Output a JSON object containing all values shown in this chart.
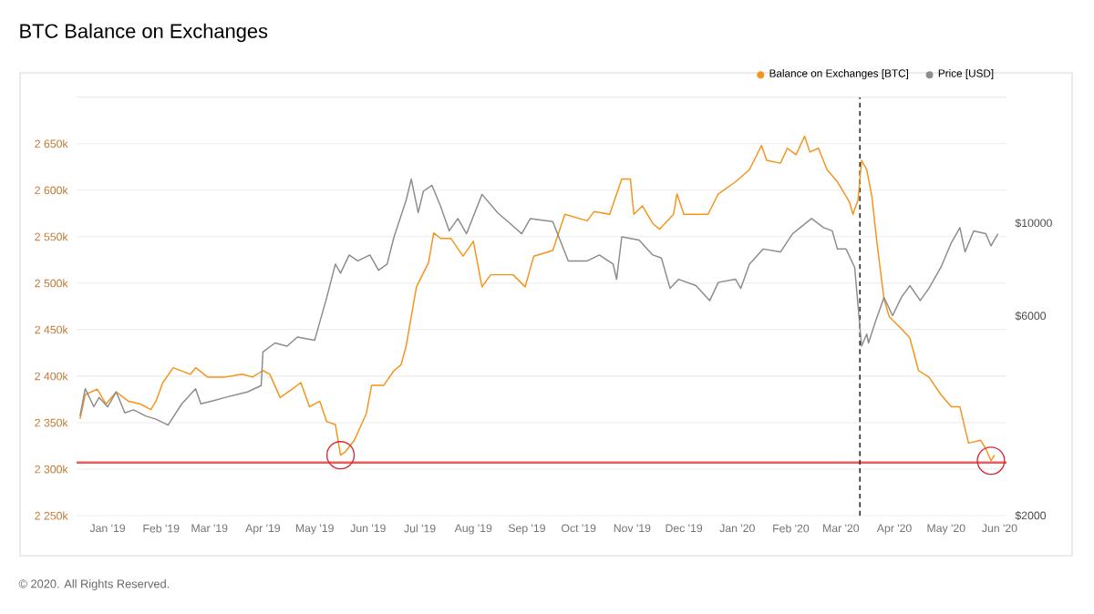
{
  "chart_data": {
    "type": "line",
    "title": "BTC Balance on Exchanges",
    "annotations": [
      "© 2020. All Rights Reserved."
    ],
    "xlim": [
      "2018-12-14",
      "2020-06-05"
    ],
    "xticks": [
      {
        "value": "2019-01-01",
        "label": "Jan '19"
      },
      {
        "value": "2019-02-01",
        "label": "Feb '19"
      },
      {
        "value": "2019-03-01",
        "label": "Mar '19"
      },
      {
        "value": "2019-04-01",
        "label": "Apr '19"
      },
      {
        "value": "2019-05-01",
        "label": "May '19"
      },
      {
        "value": "2019-06-01",
        "label": "Jun '19"
      },
      {
        "value": "2019-07-01",
        "label": "Jul '19"
      },
      {
        "value": "2019-08-01",
        "label": "Aug '19"
      },
      {
        "value": "2019-09-01",
        "label": "Sep '19"
      },
      {
        "value": "2019-10-01",
        "label": "Oct '19"
      },
      {
        "value": "2019-11-01",
        "label": "Nov '19"
      },
      {
        "value": "2019-12-01",
        "label": "Dec '19"
      },
      {
        "value": "2020-01-01",
        "label": "Jan '20"
      },
      {
        "value": "2020-02-01",
        "label": "Feb '20"
      },
      {
        "value": "2020-03-01",
        "label": "Mar '20"
      },
      {
        "value": "2020-04-01",
        "label": "Apr '20"
      },
      {
        "value": "2020-05-01",
        "label": "May '20"
      },
      {
        "value": "2020-06-01",
        "label": "Jun '20"
      }
    ],
    "ylim": [
      2250,
      2700
    ],
    "yticks": [
      {
        "value": 2250,
        "label": "2 250k"
      },
      {
        "value": 2300,
        "label": "2 300k"
      },
      {
        "value": 2350,
        "label": "2 350k"
      },
      {
        "value": 2400,
        "label": "2 400k"
      },
      {
        "value": 2450,
        "label": "2 450k"
      },
      {
        "value": 2500,
        "label": "2 500k"
      },
      {
        "value": 2550,
        "label": "2 550k"
      },
      {
        "value": 2600,
        "label": "2 600k"
      },
      {
        "value": 2650,
        "label": "2 650k"
      },
      {
        "value": 2700,
        "label": null
      }
    ],
    "y2lim": [
      2000,
      20000
    ],
    "y2ticks": [
      {
        "value": 2000,
        "label": "$2000"
      },
      {
        "value": 6000,
        "label": "$6000"
      },
      {
        "value": 10000,
        "label": "$10000"
      }
    ],
    "log": "y2",
    "grid": "y",
    "legend": "top right",
    "ref_lines": [
      {
        "axis": "y",
        "value": 2307,
        "color": "#ef5b5b"
      },
      {
        "axis": "x",
        "value": "2020-03-12",
        "color": "#222222",
        "line_style": "dashed"
      }
    ],
    "series": [
      {
        "name": "Balance on Exchanges [BTC]",
        "color": "#f7931a",
        "x": [
          "2018-12-16",
          "2018-12-19",
          "2018-12-26",
          "2018-12-31",
          "2019-01-06",
          "2019-01-13",
          "2019-01-20",
          "2019-01-26",
          "2019-01-29",
          "2019-02-02",
          "2019-02-08",
          "2019-02-18",
          "2019-02-21",
          "2019-02-28",
          "2019-03-10",
          "2019-03-20",
          "2019-03-26",
          "2019-04-01",
          "2019-04-05",
          "2019-04-11",
          "2019-04-18",
          "2019-04-23",
          "2019-04-28",
          "2019-05-04",
          "2019-05-08",
          "2019-05-13",
          "2019-05-16",
          "2019-05-19",
          "2019-05-24",
          "2019-05-31",
          "2019-06-03",
          "2019-06-10",
          "2019-06-16",
          "2019-06-20",
          "2019-06-23",
          "2019-06-29",
          "2019-07-06",
          "2019-07-09",
          "2019-07-13",
          "2019-07-19",
          "2019-07-26",
          "2019-08-01",
          "2019-08-06",
          "2019-08-11",
          "2019-08-24",
          "2019-08-31",
          "2019-09-05",
          "2019-09-16",
          "2019-09-23",
          "2019-10-06",
          "2019-10-10",
          "2019-10-19",
          "2019-10-26",
          "2019-10-31",
          "2019-11-02",
          "2019-11-07",
          "2019-11-13",
          "2019-11-17",
          "2019-11-25",
          "2019-11-27",
          "2019-12-01",
          "2019-12-15",
          "2019-12-21",
          "2019-12-31",
          "2020-01-08",
          "2020-01-15",
          "2020-01-18",
          "2020-01-26",
          "2020-01-30",
          "2020-02-04",
          "2020-02-09",
          "2020-02-12",
          "2020-02-17",
          "2020-02-22",
          "2020-02-28",
          "2020-03-06",
          "2020-03-08",
          "2020-03-11",
          "2020-03-13",
          "2020-03-16",
          "2020-03-19",
          "2020-03-22",
          "2020-03-26",
          "2020-03-29",
          "2020-04-05",
          "2020-04-10",
          "2020-04-15",
          "2020-04-21",
          "2020-04-28",
          "2020-05-04",
          "2020-05-09",
          "2020-05-14",
          "2020-05-21",
          "2020-05-24",
          "2020-05-27",
          "2020-05-29"
        ],
        "values": [
          2354,
          2380,
          2386,
          2370,
          2383,
          2373,
          2370,
          2364,
          2373,
          2393,
          2409,
          2402,
          2409,
          2399,
          2399,
          2402,
          2399,
          2406,
          2402,
          2377,
          2386,
          2393,
          2367,
          2373,
          2351,
          2348,
          2315,
          2319,
          2331,
          2360,
          2390,
          2390,
          2406,
          2412,
          2432,
          2496,
          2522,
          2554,
          2548,
          2548,
          2529,
          2545,
          2496,
          2509,
          2509,
          2496,
          2529,
          2535,
          2574,
          2567,
          2577,
          2574,
          2612,
          2612,
          2574,
          2583,
          2564,
          2558,
          2574,
          2596,
          2574,
          2574,
          2596,
          2609,
          2622,
          2648,
          2632,
          2629,
          2645,
          2638,
          2658,
          2641,
          2645,
          2622,
          2609,
          2587,
          2574,
          2590,
          2632,
          2622,
          2593,
          2542,
          2483,
          2464,
          2451,
          2441,
          2406,
          2399,
          2380,
          2367,
          2367,
          2328,
          2331,
          2322,
          2309,
          2315
        ]
      },
      {
        "name": "Price [USD]",
        "color": "#8c8c8c",
        "axis": "y2",
        "x": [
          "2018-12-16",
          "2018-12-19",
          "2018-12-24",
          "2018-12-27",
          "2019-01-01",
          "2019-01-06",
          "2019-01-11",
          "2019-01-16",
          "2019-01-23",
          "2019-01-29",
          "2019-02-05",
          "2019-02-13",
          "2019-02-21",
          "2019-02-24",
          "2019-03-03",
          "2019-03-10",
          "2019-03-23",
          "2019-03-31",
          "2019-04-01",
          "2019-04-08",
          "2019-04-15",
          "2019-04-21",
          "2019-05-01",
          "2019-05-08",
          "2019-05-13",
          "2019-05-16",
          "2019-05-21",
          "2019-05-26",
          "2019-06-02",
          "2019-06-07",
          "2019-06-12",
          "2019-06-16",
          "2019-06-23",
          "2019-06-26",
          "2019-06-30",
          "2019-07-03",
          "2019-07-08",
          "2019-07-13",
          "2019-07-18",
          "2019-07-23",
          "2019-07-28",
          "2019-08-06",
          "2019-08-15",
          "2019-08-21",
          "2019-08-29",
          "2019-09-03",
          "2019-09-16",
          "2019-09-25",
          "2019-10-06",
          "2019-10-13",
          "2019-10-21",
          "2019-10-23",
          "2019-10-26",
          "2019-11-05",
          "2019-11-13",
          "2019-11-18",
          "2019-11-23",
          "2019-11-28",
          "2019-12-08",
          "2019-12-16",
          "2019-12-21",
          "2019-12-31",
          "2020-01-03",
          "2020-01-08",
          "2020-01-16",
          "2020-01-26",
          "2020-02-02",
          "2020-02-13",
          "2020-02-20",
          "2020-02-25",
          "2020-02-28",
          "2020-03-04",
          "2020-03-09",
          "2020-03-13",
          "2020-03-16",
          "2020-03-17",
          "2020-03-21",
          "2020-03-26",
          "2020-03-31",
          "2020-04-05",
          "2020-04-10",
          "2020-04-16",
          "2020-04-21",
          "2020-04-28",
          "2020-05-04",
          "2020-05-09",
          "2020-05-12",
          "2020-05-17",
          "2020-05-24",
          "2020-05-27",
          "2020-05-31"
        ],
        "values": [
          3460,
          4020,
          3640,
          3830,
          3640,
          3950,
          3520,
          3580,
          3460,
          3400,
          3290,
          3700,
          4020,
          3700,
          3760,
          3830,
          3950,
          4090,
          4920,
          5170,
          5080,
          5340,
          5250,
          6640,
          7980,
          7590,
          8390,
          8120,
          8390,
          7720,
          7980,
          9270,
          11330,
          12740,
          10590,
          11910,
          12310,
          10960,
          9580,
          10250,
          9430,
          11710,
          10590,
          10080,
          9430,
          10250,
          10080,
          8120,
          8120,
          8390,
          7980,
          7340,
          9270,
          9110,
          8390,
          8250,
          6980,
          7340,
          7090,
          6530,
          7220,
          7340,
          6980,
          7980,
          8670,
          8530,
          9430,
          10250,
          9750,
          9580,
          8670,
          8670,
          7840,
          5080,
          5430,
          5170,
          5810,
          6640,
          6010,
          6640,
          7090,
          6530,
          6980,
          7840,
          8970,
          9750,
          8530,
          9580,
          9430,
          8820,
          9430
        ]
      }
    ]
  }
}
